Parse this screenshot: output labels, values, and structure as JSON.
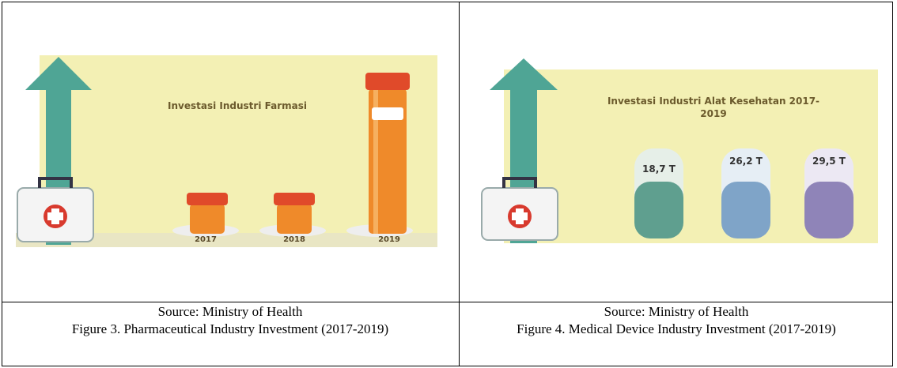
{
  "cells": [
    {
      "figure": {
        "title": "Investasi Industri Farmasi",
        "categories": [
          "2017",
          "2018",
          "2019"
        ]
      },
      "source": "Source: Ministry of Health",
      "caption": "Figure 3. Pharmaceutical Industry Investment (2017-2019)"
    },
    {
      "figure": {
        "title": "Investasi Industri Alat Kesehatan 2017-2019",
        "labels": [
          "18,7 T",
          "26,2 T",
          "29,5 T"
        ]
      },
      "source": "Source: Ministry of Health",
      "caption": "Figure 4. Medical Device Industry Investment (2017-2019)"
    }
  ]
}
